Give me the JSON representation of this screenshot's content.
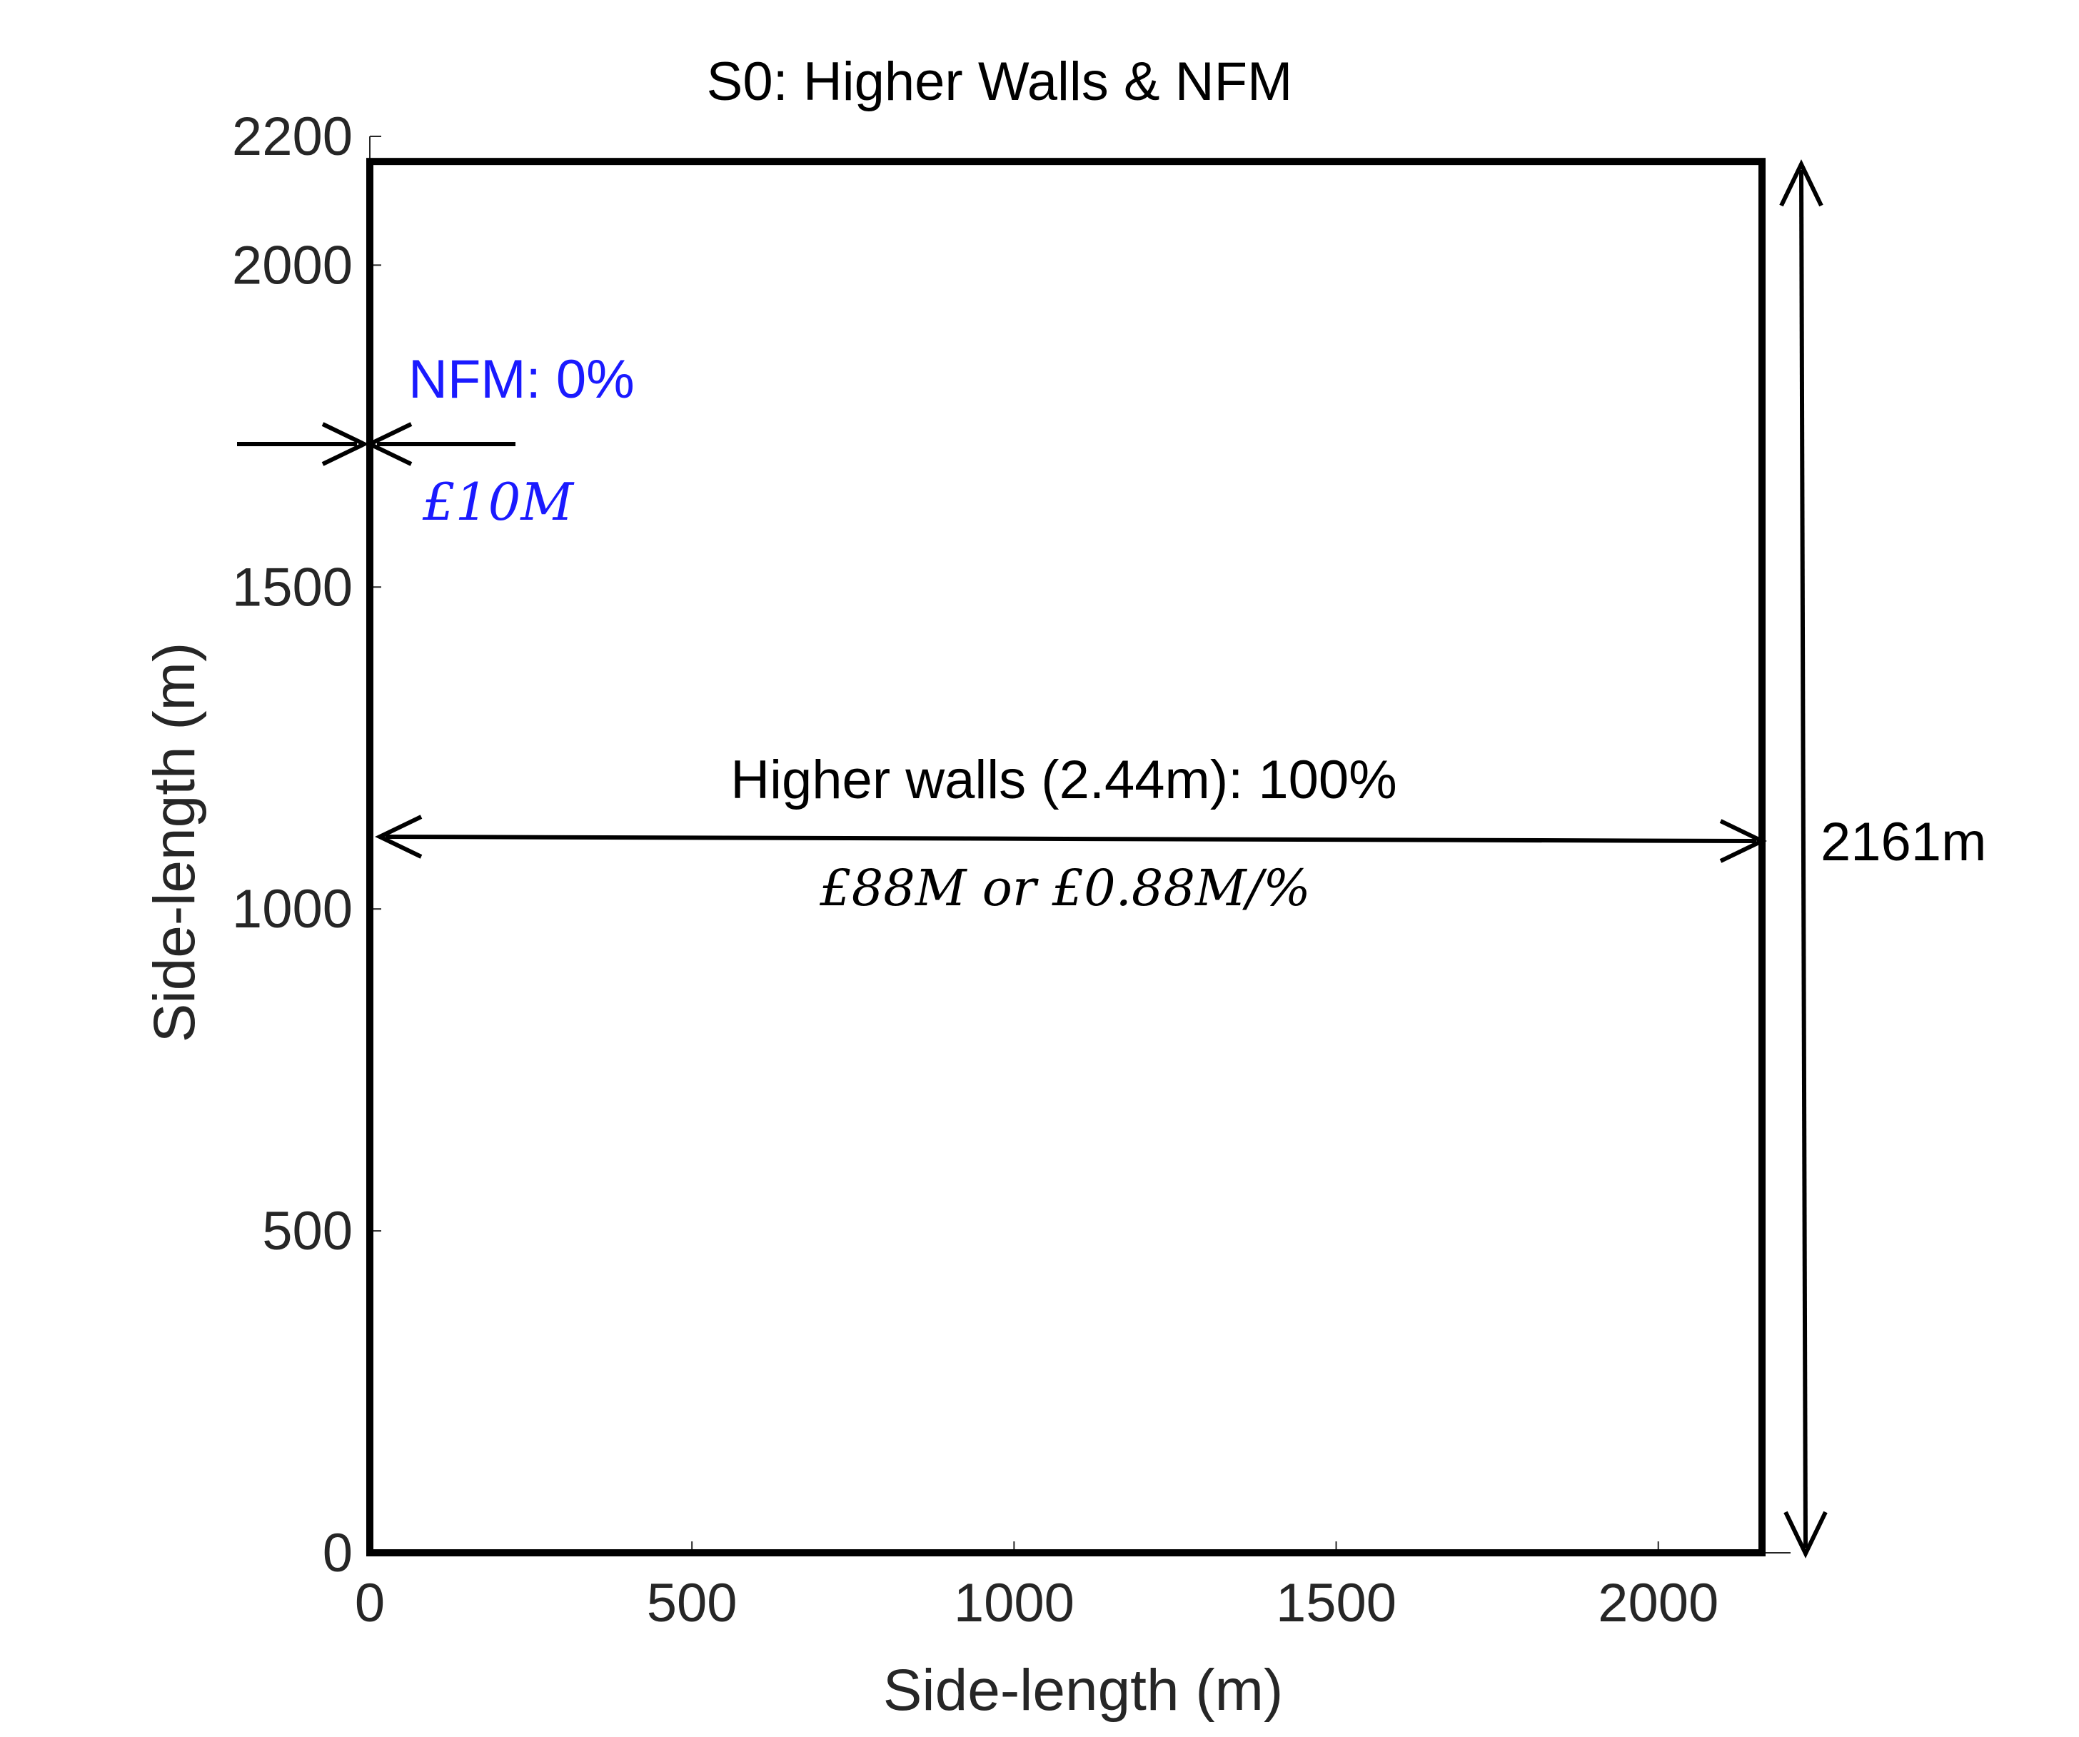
{
  "chart_data": {
    "type": "diagram",
    "title": "S0: Higher Walls & NFM",
    "xlabel": "Side-length (m)",
    "ylabel": "Side-length (m)",
    "xlim": [
      0,
      2161
    ],
    "ylim": [
      0,
      2200
    ],
    "x_ticks": [
      0,
      500,
      1000,
      1500,
      2000
    ],
    "y_ticks": [
      0,
      500,
      1000,
      1500,
      2000,
      2200
    ],
    "square_side_m": 2161,
    "annotations": {
      "nfm_label": "NFM: 0%",
      "nfm_cost": "£10M",
      "walls_label": "Higher walls (2.44m): 100%",
      "walls_cost": "£88M or £0.88M/%",
      "side_length_label": "2161m"
    },
    "colors": {
      "nfm": "#1a1aff",
      "walls": "#000000",
      "axis_text": "#262626"
    }
  }
}
